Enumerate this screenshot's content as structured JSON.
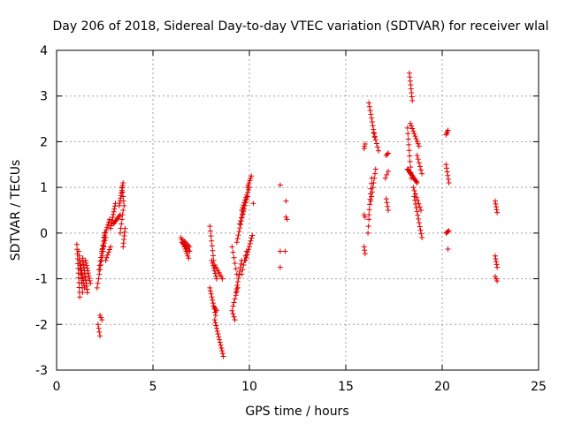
{
  "chart_data": {
    "type": "scatter",
    "title": "Day 206 of 2018, Sidereal Day-to-day VTEC variation (SDTVAR) for receiver wlal",
    "xlabel": "GPS time / hours",
    "ylabel": "SDTVAR / TECUs",
    "xlim": [
      0,
      25
    ],
    "ylim": [
      -3,
      4
    ],
    "x_ticks": [
      "0",
      "5",
      "10",
      "15",
      "20",
      "25"
    ],
    "y_ticks": [
      "-3",
      "-2",
      "-1",
      "0",
      "1",
      "2",
      "3",
      "4"
    ],
    "grid": true,
    "marker": "+",
    "color": "#e00000",
    "segments": [
      {
        "x0": 1.05,
        "x1": 1.2,
        "y0": -0.25,
        "y1": -1.4,
        "n": 12
      },
      {
        "x0": 1.15,
        "x1": 1.35,
        "y0": -0.4,
        "y1": -1.3,
        "n": 10
      },
      {
        "x0": 1.2,
        "x1": 1.45,
        "y0": -0.6,
        "y1": -1.2,
        "n": 12
      },
      {
        "x0": 1.35,
        "x1": 1.6,
        "y0": -0.55,
        "y1": -1.3,
        "n": 12
      },
      {
        "x0": 1.5,
        "x1": 1.75,
        "y0": -0.6,
        "y1": -1.1,
        "n": 10
      },
      {
        "x0": 2.15,
        "x1": 2.25,
        "y0": -2.0,
        "y1": -2.25,
        "n": 4
      },
      {
        "x0": 2.25,
        "x1": 2.35,
        "y0": -1.8,
        "y1": -1.9,
        "n": 3
      },
      {
        "x0": 2.1,
        "x1": 2.45,
        "y0": -1.2,
        "y1": -0.3,
        "n": 10
      },
      {
        "x0": 2.2,
        "x1": 2.5,
        "y0": -0.8,
        "y1": 0.0,
        "n": 10
      },
      {
        "x0": 2.35,
        "x1": 2.55,
        "y0": -0.4,
        "y1": -0.1,
        "n": 6
      },
      {
        "x0": 2.45,
        "x1": 2.75,
        "y0": -0.1,
        "y1": 0.3,
        "n": 8
      },
      {
        "x0": 2.55,
        "x1": 2.8,
        "y0": -0.6,
        "y1": -0.3,
        "n": 6
      },
      {
        "x0": 2.8,
        "x1": 3.05,
        "y0": 0.1,
        "y1": 0.65,
        "n": 10
      },
      {
        "x0": 2.95,
        "x1": 3.3,
        "y0": 0.2,
        "y1": 0.4,
        "n": 8
      },
      {
        "x0": 3.25,
        "x1": 3.45,
        "y0": 0.6,
        "y1": 1.1,
        "n": 10
      },
      {
        "x0": 3.3,
        "x1": 3.45,
        "y0": 0.0,
        "y1": 0.5,
        "n": 6
      },
      {
        "x0": 3.4,
        "x1": 3.5,
        "y0": 1.0,
        "y1": 0.6,
        "n": 5
      },
      {
        "x0": 3.45,
        "x1": 3.55,
        "y0": -0.3,
        "y1": 0.1,
        "n": 6
      },
      {
        "x0": 6.45,
        "x1": 6.85,
        "y0": -0.1,
        "y1": -0.55,
        "n": 10
      },
      {
        "x0": 6.5,
        "x1": 6.9,
        "y0": -0.2,
        "y1": -0.4,
        "n": 8
      },
      {
        "x0": 6.55,
        "x1": 6.9,
        "y0": -0.15,
        "y1": -0.3,
        "n": 6
      },
      {
        "x0": 7.95,
        "x1": 8.15,
        "y0": 0.15,
        "y1": -0.6,
        "n": 8
      },
      {
        "x0": 8.05,
        "x1": 8.3,
        "y0": -0.6,
        "y1": -1.0,
        "n": 8
      },
      {
        "x0": 8.2,
        "x1": 8.6,
        "y0": -0.7,
        "y1": -1.0,
        "n": 8
      },
      {
        "x0": 7.95,
        "x1": 8.25,
        "y0": -1.2,
        "y1": -1.8,
        "n": 10
      },
      {
        "x0": 8.2,
        "x1": 8.65,
        "y0": -1.9,
        "y1": -2.7,
        "n": 14
      },
      {
        "x0": 8.15,
        "x1": 8.3,
        "y0": -1.6,
        "y1": -1.7,
        "n": 4
      },
      {
        "x0": 9.1,
        "x1": 9.35,
        "y0": -0.3,
        "y1": -0.9,
        "n": 6
      },
      {
        "x0": 9.15,
        "x1": 9.4,
        "y0": -1.6,
        "y1": -1.2,
        "n": 6
      },
      {
        "x0": 9.1,
        "x1": 9.25,
        "y0": -1.7,
        "y1": -1.9,
        "n": 4
      },
      {
        "x0": 9.3,
        "x1": 9.6,
        "y0": -1.3,
        "y1": -0.6,
        "n": 10
      },
      {
        "x0": 9.35,
        "x1": 9.7,
        "y0": -0.2,
        "y1": 0.5,
        "n": 10
      },
      {
        "x0": 9.5,
        "x1": 9.9,
        "y0": 0.2,
        "y1": 0.8,
        "n": 10
      },
      {
        "x0": 9.6,
        "x1": 10.0,
        "y0": 0.5,
        "y1": 1.0,
        "n": 10
      },
      {
        "x0": 9.9,
        "x1": 10.1,
        "y0": 1.0,
        "y1": 1.25,
        "n": 6
      },
      {
        "x0": 9.6,
        "x1": 9.85,
        "y0": -0.9,
        "y1": -0.4,
        "n": 6
      },
      {
        "x0": 9.8,
        "x1": 10.15,
        "y0": -0.6,
        "y1": -0.05,
        "n": 10
      },
      {
        "x0": 10.2,
        "x1": 10.2,
        "y0": 0.65,
        "y1": 0.65,
        "n": 1
      },
      {
        "x0": 11.6,
        "x1": 11.6,
        "y0": 1.05,
        "y1": 1.05,
        "n": 1
      },
      {
        "x0": 11.9,
        "x1": 11.9,
        "y0": 0.7,
        "y1": 0.7,
        "n": 1
      },
      {
        "x0": 11.9,
        "x1": 11.95,
        "y0": 0.35,
        "y1": 0.3,
        "n": 2
      },
      {
        "x0": 11.6,
        "x1": 11.6,
        "y0": -0.4,
        "y1": -0.4,
        "n": 1
      },
      {
        "x0": 11.85,
        "x1": 11.85,
        "y0": -0.4,
        "y1": -0.4,
        "n": 1
      },
      {
        "x0": 11.6,
        "x1": 11.6,
        "y0": -0.75,
        "y1": -0.75,
        "n": 1
      },
      {
        "x0": 15.95,
        "x1": 16.0,
        "y0": 1.85,
        "y1": 1.95,
        "n": 3
      },
      {
        "x0": 15.95,
        "x1": 16.0,
        "y0": 0.4,
        "y1": 0.35,
        "n": 2
      },
      {
        "x0": 15.95,
        "x1": 16.0,
        "y0": -0.3,
        "y1": -0.45,
        "n": 3
      },
      {
        "x0": 16.15,
        "x1": 16.2,
        "y0": 0.0,
        "y1": 0.3,
        "n": 3
      },
      {
        "x0": 16.2,
        "x1": 16.35,
        "y0": 0.4,
        "y1": 1.2,
        "n": 8
      },
      {
        "x0": 16.3,
        "x1": 16.55,
        "y0": 0.7,
        "y1": 1.4,
        "n": 8
      },
      {
        "x0": 16.2,
        "x1": 16.5,
        "y0": 2.85,
        "y1": 2.1,
        "n": 10
      },
      {
        "x0": 16.45,
        "x1": 16.7,
        "y0": 2.2,
        "y1": 1.8,
        "n": 6
      },
      {
        "x0": 17.1,
        "x1": 17.2,
        "y0": 1.7,
        "y1": 1.75,
        "n": 3
      },
      {
        "x0": 17.05,
        "x1": 17.2,
        "y0": 1.2,
        "y1": 1.35,
        "n": 3
      },
      {
        "x0": 17.1,
        "x1": 17.2,
        "y0": 0.75,
        "y1": 0.5,
        "n": 4
      },
      {
        "x0": 18.3,
        "x1": 18.45,
        "y0": 3.5,
        "y1": 2.9,
        "n": 8
      },
      {
        "x0": 18.2,
        "x1": 18.4,
        "y0": 2.3,
        "y1": 1.2,
        "n": 10
      },
      {
        "x0": 18.2,
        "x1": 18.7,
        "y0": 1.4,
        "y1": 1.1,
        "n": 14
      },
      {
        "x0": 18.35,
        "x1": 18.8,
        "y0": 2.4,
        "y1": 1.9,
        "n": 10
      },
      {
        "x0": 18.5,
        "x1": 18.9,
        "y0": 1.0,
        "y1": 0.5,
        "n": 8
      },
      {
        "x0": 18.55,
        "x1": 18.95,
        "y0": 0.8,
        "y1": -0.1,
        "n": 12
      },
      {
        "x0": 18.7,
        "x1": 18.95,
        "y0": 1.7,
        "y1": 1.3,
        "n": 6
      },
      {
        "x0": 20.2,
        "x1": 20.3,
        "y0": 2.15,
        "y1": 2.25,
        "n": 4
      },
      {
        "x0": 20.2,
        "x1": 20.35,
        "y0": 1.5,
        "y1": 1.1,
        "n": 6
      },
      {
        "x0": 20.2,
        "x1": 20.35,
        "y0": 0.0,
        "y1": 0.05,
        "n": 4
      },
      {
        "x0": 20.3,
        "x1": 20.3,
        "y0": -0.35,
        "y1": -0.35,
        "n": 1
      },
      {
        "x0": 22.75,
        "x1": 22.85,
        "y0": 0.7,
        "y1": 0.45,
        "n": 5
      },
      {
        "x0": 22.75,
        "x1": 22.85,
        "y0": -0.5,
        "y1": -0.75,
        "n": 5
      },
      {
        "x0": 22.75,
        "x1": 22.85,
        "y0": -0.95,
        "y1": -1.05,
        "n": 3
      }
    ]
  }
}
